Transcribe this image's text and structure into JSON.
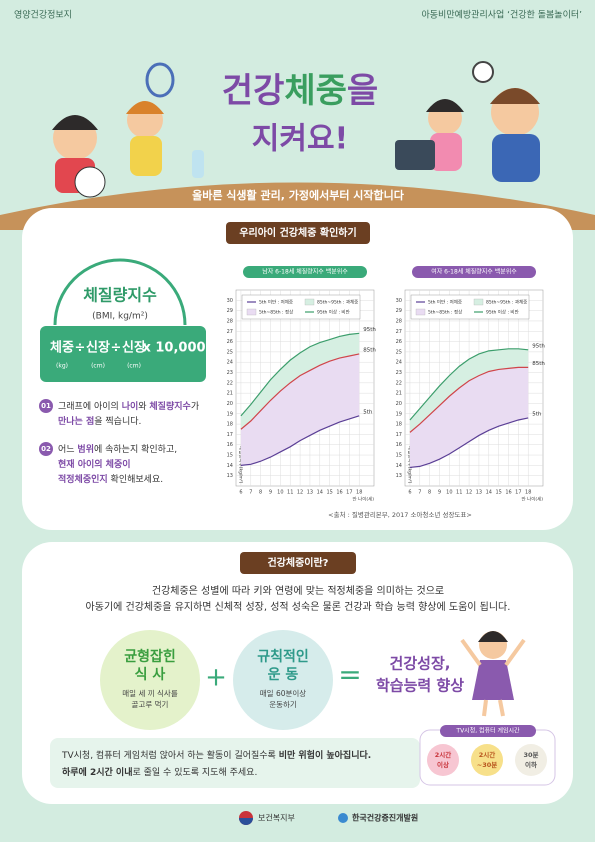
{
  "header": {
    "left": "영양건강정보지",
    "right": "아동비만예방관리사업 ‘건강한 돌봄놀이터’"
  },
  "title": {
    "line1": [
      "건강",
      "체중",
      "을"
    ],
    "line2": "지켜요!"
  },
  "subtitle": "올바른 식생활 관리, 가정에서부터 시작합니다",
  "section1": {
    "tag": "우리아이 건강체중 확인하기",
    "bmi_title": "체질량지수",
    "bmi_unit": "(BMI, kg/m²)",
    "formula": [
      "체중",
      "÷",
      "신장",
      "÷",
      "신장",
      "x 10,000"
    ],
    "formula_units": [
      "(kg)",
      "(cm)",
      "(cm)"
    ],
    "steps": [
      {
        "num": "01",
        "lines": [
          [
            "그래프에 아이의 ",
            "나이",
            "와 ",
            "체질량지수",
            "가"
          ],
          [
            "만나는 점",
            "을 찍습니다."
          ]
        ]
      },
      {
        "num": "02",
        "lines": [
          [
            "어느 ",
            "범위",
            "에 속하는지 확인하고,"
          ],
          [
            "현재 아이의 체중이"
          ],
          [
            "적정체중인지",
            " 확인해보세요."
          ]
        ]
      }
    ],
    "source": "<출처 : 질병관리본부, 2017 소아청소년 성장도표>"
  },
  "charts": [
    {
      "type": "line",
      "title": "남자 6-18세 체질량지수 백분위수",
      "xlabel": "만 나이(세)",
      "ylabel": "체질량지수(kg/m²)",
      "x": [
        6,
        7,
        8,
        9,
        10,
        11,
        12,
        13,
        14,
        15,
        16,
        17,
        18
      ],
      "xlim": [
        5.5,
        19.5
      ],
      "xticks": [
        6,
        7,
        8,
        9,
        10,
        11,
        12,
        13,
        14,
        15,
        16,
        17,
        18
      ],
      "ylim": [
        12,
        31
      ],
      "yticks": [
        13,
        14,
        15,
        16,
        17,
        18,
        19,
        20,
        21,
        22,
        23,
        24,
        25,
        26,
        27,
        28,
        29,
        30
      ],
      "grid": true,
      "legend": [
        "5th 미만 : 저체중",
        "85th~95th : 과체중",
        "5th~85th : 정상",
        "95th 이상 : 비만"
      ],
      "series": [
        {
          "name": "5th",
          "color": "#5b3f96",
          "values": [
            14.0,
            14.1,
            14.4,
            14.8,
            15.3,
            15.8,
            16.4,
            16.9,
            17.4,
            17.8,
            18.2,
            18.5,
            18.8
          ]
        },
        {
          "name": "85th",
          "color": "#d0454a",
          "values": [
            17.5,
            18.3,
            19.3,
            20.3,
            21.2,
            22.0,
            22.7,
            23.2,
            23.7,
            24.1,
            24.4,
            24.6,
            24.8
          ]
        },
        {
          "name": "95th",
          "color": "#3c9e6c",
          "values": [
            18.8,
            19.9,
            21.1,
            22.3,
            23.3,
            24.2,
            24.9,
            25.5,
            25.9,
            26.2,
            26.5,
            26.7,
            26.8
          ]
        }
      ]
    },
    {
      "type": "line",
      "title": "여자 6-18세 체질량지수 백분위수",
      "xlabel": "만 나이(세)",
      "ylabel": "체질량지수(kg/m²)",
      "x": [
        6,
        7,
        8,
        9,
        10,
        11,
        12,
        13,
        14,
        15,
        16,
        17,
        18
      ],
      "xlim": [
        5.5,
        19.5
      ],
      "xticks": [
        6,
        7,
        8,
        9,
        10,
        11,
        12,
        13,
        14,
        15,
        16,
        17,
        18
      ],
      "ylim": [
        12,
        31
      ],
      "yticks": [
        13,
        14,
        15,
        16,
        17,
        18,
        19,
        20,
        21,
        22,
        23,
        24,
        25,
        26,
        27,
        28,
        29,
        30
      ],
      "grid": true,
      "legend": [
        "5th 미만 : 저체중",
        "85th~95th : 과체중",
        "5th~85th : 정상",
        "95th 이상 : 비만"
      ],
      "series": [
        {
          "name": "5th",
          "color": "#5b3f96",
          "values": [
            13.8,
            13.9,
            14.2,
            14.6,
            15.1,
            15.7,
            16.3,
            16.9,
            17.4,
            17.8,
            18.1,
            18.4,
            18.6
          ]
        },
        {
          "name": "85th",
          "color": "#d0454a",
          "values": [
            17.2,
            18.0,
            18.9,
            19.8,
            20.7,
            21.5,
            22.2,
            22.7,
            23.1,
            23.3,
            23.4,
            23.5,
            23.5
          ]
        },
        {
          "name": "95th",
          "color": "#3c9e6c",
          "values": [
            18.4,
            19.5,
            20.6,
            21.7,
            22.7,
            23.6,
            24.3,
            24.8,
            25.1,
            25.2,
            25.3,
            25.3,
            25.2
          ]
        }
      ]
    }
  ],
  "section2": {
    "tag": "건강체중이란?",
    "paragraph": [
      "건강체중은 성별에 따라 키와 연령에 맞는 적정체중을 의미하는 것으로",
      "아동기에 건강체중을 유지하면 신체적 성장, 성적 성숙은 물론 건강과 학습 능력 향상에 도움이 됩니다."
    ],
    "items": [
      {
        "title": [
          "균형잡힌",
          "식 사"
        ],
        "desc": [
          "매일 세 끼 식사를",
          "골고루 먹기"
        ]
      },
      {
        "title": [
          "규칙적인",
          "운 동"
        ],
        "desc": [
          "매일 60분이상",
          "운동하기"
        ]
      }
    ],
    "plus": "+",
    "equals": "=",
    "result": [
      "건강성장,",
      "학습능력 향상"
    ],
    "notice": [
      [
        "TV시청, 컴퓨터 게임처럼 앉아서 하는 활동이 길어질수록 ",
        "비만 위험이 높아집니다."
      ],
      [
        "하루에 2시간 이내",
        "로 줄일 수 있도록 지도해 주세요."
      ]
    ],
    "badge": {
      "title": "TV시청, 컴퓨터 게임시간",
      "levels": [
        [
          "2시간",
          "이상"
        ],
        [
          "2시간",
          "~30분"
        ],
        [
          "30분",
          "이하"
        ]
      ]
    }
  },
  "footer": [
    "보건복지부",
    "한국건강증진개발원"
  ]
}
